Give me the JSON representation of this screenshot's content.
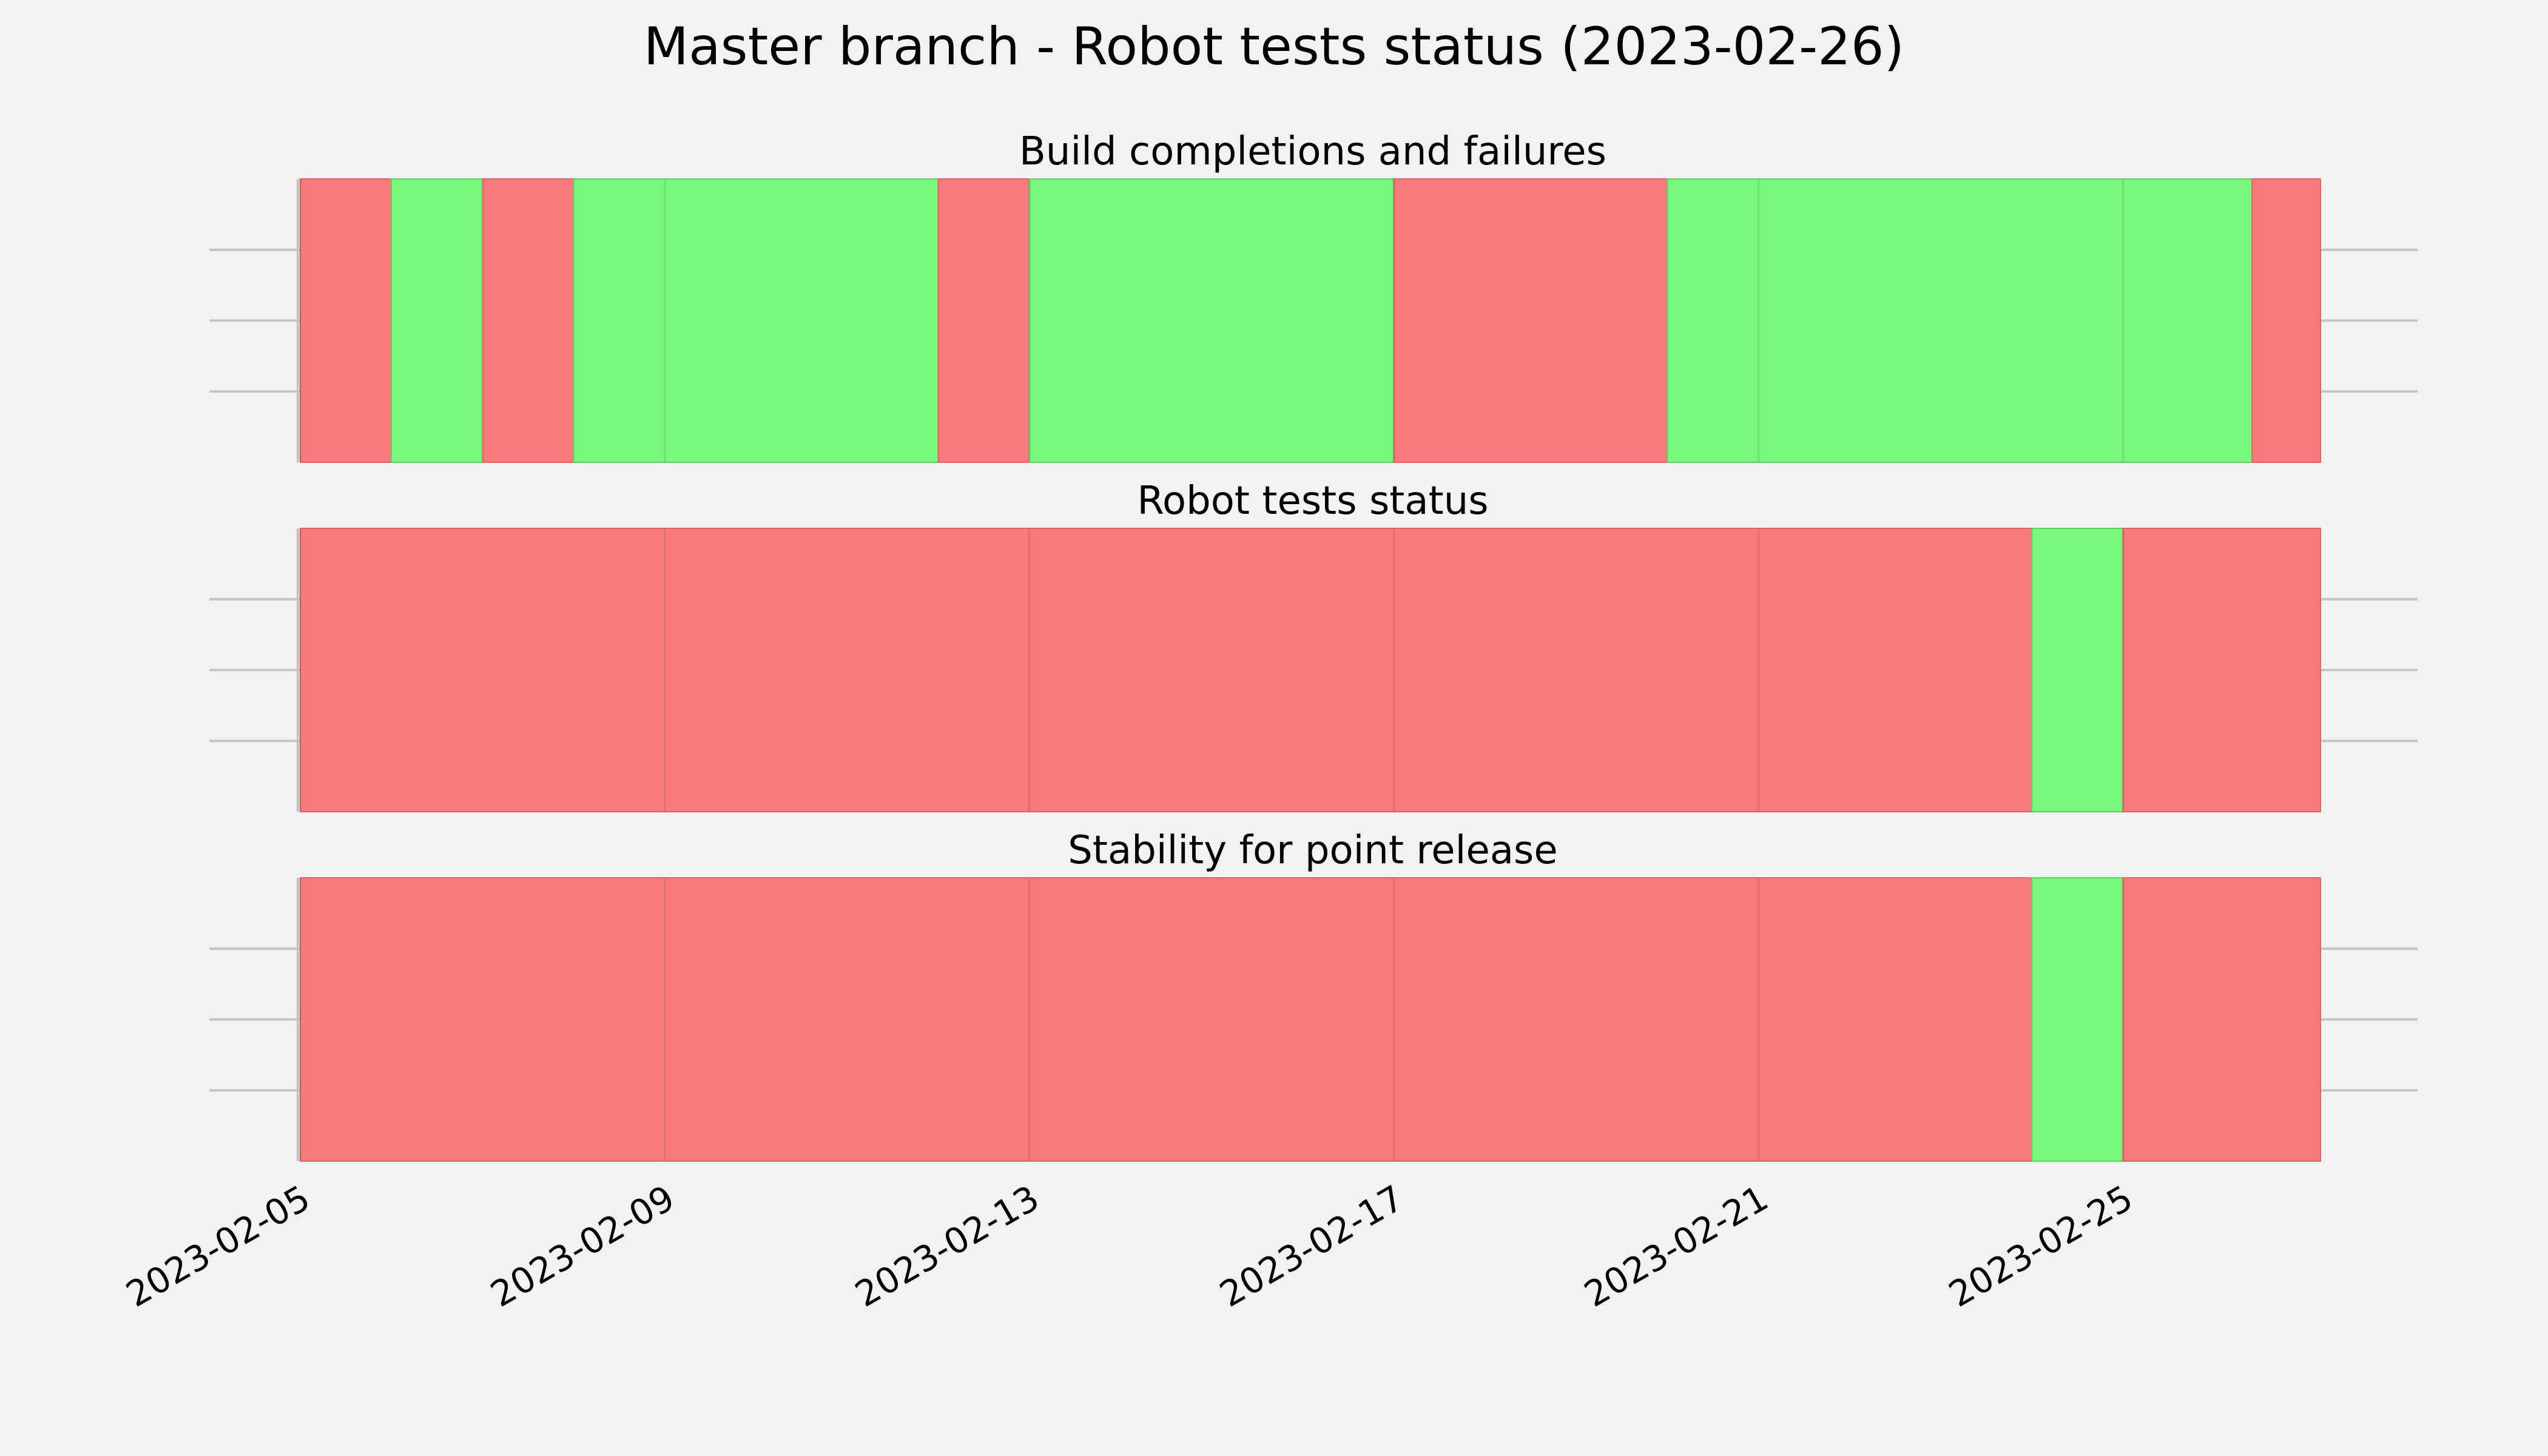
{
  "chart_data": {
    "type": "timeline",
    "title": "Master branch - Robot tests status (2023-02-26)",
    "x_range": [
      "2023-02-05",
      "2023-02-27T04:00"
    ],
    "x_ticks": [
      "2023-02-05",
      "2023-02-09",
      "2023-02-13",
      "2023-02-17",
      "2023-02-21",
      "2023-02-25"
    ],
    "grid": true,
    "colors": {
      "pass": "#77f77b",
      "fail": "#f77b7b",
      "background": "#f2f2f2"
    },
    "panels": [
      {
        "title": "Build completions and failures",
        "segments": [
          {
            "start": "2023-02-05T00:00",
            "end": "2023-02-06T00:00",
            "status": "fail"
          },
          {
            "start": "2023-02-06T00:00",
            "end": "2023-02-07T00:00",
            "status": "pass"
          },
          {
            "start": "2023-02-07T00:00",
            "end": "2023-02-08T00:00",
            "status": "fail"
          },
          {
            "start": "2023-02-08T00:00",
            "end": "2023-02-12T00:00",
            "status": "pass"
          },
          {
            "start": "2023-02-12T00:00",
            "end": "2023-02-13T00:00",
            "status": "fail"
          },
          {
            "start": "2023-02-13T00:00",
            "end": "2023-02-17T00:00",
            "status": "pass"
          },
          {
            "start": "2023-02-17T00:00",
            "end": "2023-02-20T00:00",
            "status": "fail"
          },
          {
            "start": "2023-02-20T00:00",
            "end": "2023-02-26T10:00",
            "status": "pass"
          },
          {
            "start": "2023-02-26T10:00",
            "end": "2023-02-27T04:00",
            "status": "fail"
          }
        ]
      },
      {
        "title": "Robot tests status",
        "segments": [
          {
            "start": "2023-02-05T00:00",
            "end": "2023-02-24T00:00",
            "status": "fail"
          },
          {
            "start": "2023-02-24T00:00",
            "end": "2023-02-25T00:00",
            "status": "pass"
          },
          {
            "start": "2023-02-25T00:00",
            "end": "2023-02-27T04:00",
            "status": "fail"
          }
        ]
      },
      {
        "title": "Stability for point release",
        "segments": [
          {
            "start": "2023-02-05T00:00",
            "end": "2023-02-24T00:00",
            "status": "fail"
          },
          {
            "start": "2023-02-24T00:00",
            "end": "2023-02-25T00:00",
            "status": "pass"
          },
          {
            "start": "2023-02-25T00:00",
            "end": "2023-02-27T04:00",
            "status": "fail"
          }
        ]
      }
    ]
  }
}
